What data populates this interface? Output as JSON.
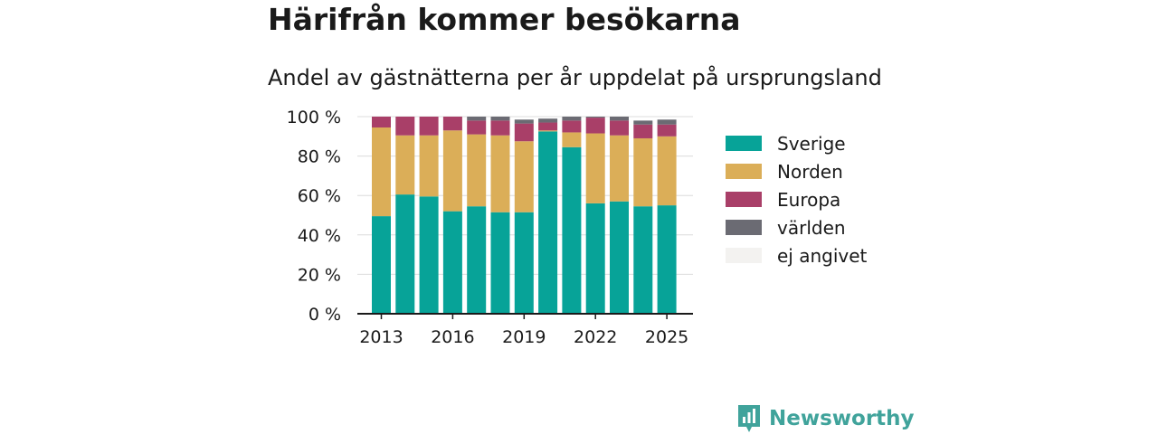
{
  "title": "Härifrån kommer besökarna",
  "subtitle": "Andel av gästnätterna per år uppdelat på ursprungsland",
  "brand": {
    "name": "Newsworthy",
    "color": "#40a39b",
    "icon": "newsworthy-logo-icon"
  },
  "chart_data": {
    "type": "bar",
    "stacked": true,
    "x": [
      2013,
      2014,
      2015,
      2016,
      2017,
      2018,
      2019,
      2020,
      2021,
      2022,
      2023,
      2024,
      2025
    ],
    "x_tick_labels": [
      "2013",
      "2016",
      "2019",
      "2022",
      "2025"
    ],
    "x_tick_values": [
      2013,
      2016,
      2019,
      2022,
      2025
    ],
    "y_tick_labels": [
      "0 %",
      "20 %",
      "40 %",
      "60 %",
      "80 %",
      "100 %"
    ],
    "y_tick_values": [
      0,
      20,
      40,
      60,
      80,
      100
    ],
    "ylim": [
      0,
      100
    ],
    "y_unit": "%",
    "grid": true,
    "legend_position": "right",
    "series": [
      {
        "name": "Sverige",
        "color": "#07a398",
        "values": [
          49.5,
          60.5,
          59.5,
          52,
          54.5,
          51.5,
          51.5,
          92.5,
          84.5,
          56,
          57,
          54.5,
          55
        ]
      },
      {
        "name": "Norden",
        "color": "#dbae58",
        "values": [
          45,
          30,
          31,
          41,
          36.5,
          39,
          36,
          0.5,
          7.5,
          35.5,
          33.5,
          34.5,
          35
        ]
      },
      {
        "name": "Europa",
        "color": "#a93f68",
        "values": [
          5.5,
          9.5,
          9.5,
          7,
          7,
          7.5,
          9,
          4,
          6,
          8,
          7.5,
          7,
          6
        ]
      },
      {
        "name": "världen",
        "color": "#6b6b73",
        "values": [
          0,
          0,
          0,
          0,
          2,
          2,
          2,
          2,
          2,
          0.5,
          2,
          2,
          2.5
        ]
      },
      {
        "name": "ej angivet",
        "color": "#f3f2f0",
        "values": [
          0,
          0,
          0,
          0,
          0,
          0,
          0,
          0,
          0,
          0,
          0,
          0,
          0
        ]
      }
    ]
  }
}
